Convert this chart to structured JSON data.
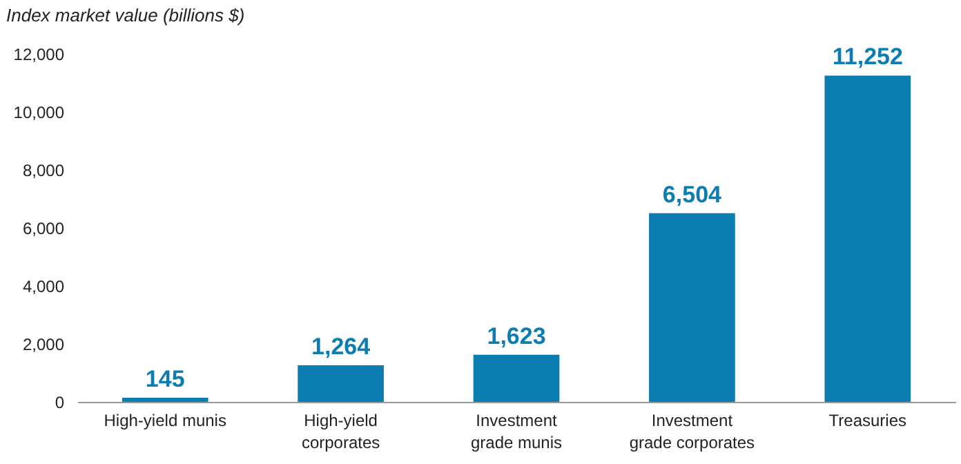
{
  "chart_data": {
    "type": "bar",
    "ylabel": "Index market value (billions $)",
    "categories": [
      "High-yield munis",
      "High-yield corporates",
      "Investment grade munis",
      "Investment grade corporates",
      "Treasuries"
    ],
    "values": [
      145,
      1264,
      1623,
      6504,
      11252
    ],
    "value_labels": [
      "145",
      "1,264",
      "1,623",
      "6,504",
      "11,252"
    ],
    "color": "#0b7db1",
    "ylim": [
      0,
      12000
    ],
    "yticks": [
      0,
      {
        "value": 2000,
        "label": "2,000"
      },
      {
        "value": 4000,
        "label": "4,000"
      },
      {
        "value": 6000,
        "label": "6,000"
      },
      {
        "value": 8000,
        "label": "8,000"
      },
      {
        "value": 10000,
        "label": "10,000"
      },
      {
        "value": 12000,
        "label": "12,000"
      }
    ],
    "grid": false
  }
}
